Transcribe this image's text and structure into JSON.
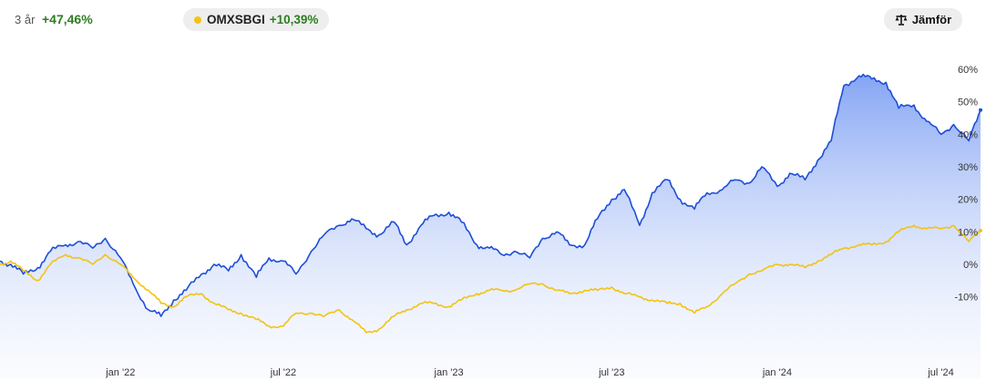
{
  "header": {
    "period_label": "3 år",
    "period_change": "+47,46%",
    "benchmark_name": "OMXSBGI",
    "benchmark_change": "+10,39%",
    "compare_label": "Jämför",
    "compare_icon": "scale-icon"
  },
  "colors": {
    "main_line": "#1d4ed8",
    "benchmark_line": "#f2c311",
    "positive": "#2e7d22"
  },
  "chart_data": {
    "type": "line",
    "title": "",
    "xlabel": "",
    "ylabel": "",
    "y_unit": "%",
    "ylim": [
      -20,
      62
    ],
    "y_ticks": [
      "60%",
      "50%",
      "40%",
      "30%",
      "20%",
      "10%",
      "0%",
      "-10%"
    ],
    "y_tick_values": [
      60,
      50,
      40,
      30,
      20,
      10,
      0,
      -10
    ],
    "x_ticks": [
      "jan '22",
      "jul '22",
      "jan '23",
      "jul '23",
      "jan '24",
      "jul '24"
    ],
    "x_tick_dates": [
      "2022-01-01",
      "2022-07-01",
      "2023-01-01",
      "2023-07-01",
      "2024-01-01",
      "2024-07-01"
    ],
    "x_range": [
      "2021-08-20",
      "2024-08-14"
    ],
    "grid": false,
    "legend": "top-left",
    "series": [
      {
        "name": "",
        "fill": "area-gradient",
        "x": [
          "2021-08-20",
          "2021-09-01",
          "2021-09-15",
          "2021-10-01",
          "2021-10-15",
          "2021-11-01",
          "2021-11-15",
          "2021-12-01",
          "2021-12-15",
          "2022-01-01",
          "2022-01-15",
          "2022-02-01",
          "2022-02-15",
          "2022-03-01",
          "2022-03-15",
          "2022-04-01",
          "2022-04-15",
          "2022-05-01",
          "2022-05-15",
          "2022-06-01",
          "2022-06-15",
          "2022-07-01",
          "2022-07-15",
          "2022-08-01",
          "2022-08-15",
          "2022-09-01",
          "2022-09-15",
          "2022-10-01",
          "2022-10-15",
          "2022-11-01",
          "2022-11-15",
          "2022-12-01",
          "2022-12-15",
          "2023-01-01",
          "2023-01-15",
          "2023-02-01",
          "2023-02-15",
          "2023-03-01",
          "2023-03-15",
          "2023-04-01",
          "2023-04-15",
          "2023-05-01",
          "2023-05-15",
          "2023-06-01",
          "2023-06-15",
          "2023-07-01",
          "2023-07-15",
          "2023-08-01",
          "2023-08-15",
          "2023-09-01",
          "2023-09-15",
          "2023-10-01",
          "2023-10-15",
          "2023-11-01",
          "2023-11-15",
          "2023-12-01",
          "2023-12-15",
          "2024-01-01",
          "2024-01-15",
          "2024-02-01",
          "2024-02-15",
          "2024-03-01",
          "2024-03-15",
          "2024-04-01",
          "2024-04-15",
          "2024-05-01",
          "2024-05-15",
          "2024-06-01",
          "2024-06-15",
          "2024-07-01",
          "2024-07-15",
          "2024-08-01",
          "2024-08-14"
        ],
        "values": [
          1,
          0,
          -3,
          -1,
          4,
          6,
          7,
          5,
          8,
          2,
          -6,
          -14,
          -16,
          -11,
          -8,
          -3,
          0,
          -2,
          3,
          -4,
          2,
          1,
          -3,
          4,
          9,
          12,
          14,
          11,
          9,
          13,
          6,
          12,
          15,
          16,
          13,
          6,
          5,
          3,
          4,
          2,
          8,
          10,
          6,
          6,
          14,
          20,
          23,
          12,
          22,
          26,
          20,
          17,
          22,
          23,
          26,
          25,
          30,
          24,
          28,
          26,
          32,
          38,
          55,
          58,
          57,
          56,
          48,
          49,
          44,
          40,
          43,
          38,
          47.46
        ]
      },
      {
        "name": "OMXSBGI",
        "x": [
          "2021-08-20",
          "2021-09-01",
          "2021-09-15",
          "2021-10-01",
          "2021-10-15",
          "2021-11-01",
          "2021-11-15",
          "2021-12-01",
          "2021-12-15",
          "2022-01-01",
          "2022-01-15",
          "2022-02-01",
          "2022-02-15",
          "2022-03-01",
          "2022-03-15",
          "2022-04-01",
          "2022-04-15",
          "2022-05-01",
          "2022-05-15",
          "2022-06-01",
          "2022-06-15",
          "2022-07-01",
          "2022-07-15",
          "2022-08-01",
          "2022-08-15",
          "2022-09-01",
          "2022-09-15",
          "2022-10-01",
          "2022-10-15",
          "2022-11-01",
          "2022-11-15",
          "2022-12-01",
          "2022-12-15",
          "2023-01-01",
          "2023-01-15",
          "2023-02-01",
          "2023-02-15",
          "2023-03-01",
          "2023-03-15",
          "2023-04-01",
          "2023-04-15",
          "2023-05-01",
          "2023-05-15",
          "2023-06-01",
          "2023-06-15",
          "2023-07-01",
          "2023-07-15",
          "2023-08-01",
          "2023-08-15",
          "2023-09-01",
          "2023-09-15",
          "2023-10-01",
          "2023-10-15",
          "2023-11-01",
          "2023-11-15",
          "2023-12-01",
          "2023-12-15",
          "2024-01-01",
          "2024-01-15",
          "2024-02-01",
          "2024-02-15",
          "2024-03-01",
          "2024-03-15",
          "2024-04-01",
          "2024-04-15",
          "2024-05-01",
          "2024-05-15",
          "2024-06-01",
          "2024-06-15",
          "2024-07-01",
          "2024-07-15",
          "2024-08-01",
          "2024-08-14"
        ],
        "values": [
          0,
          1,
          -2,
          -5,
          0,
          3,
          2,
          0,
          3,
          0,
          -4,
          -8,
          -12,
          -13,
          -10,
          -9,
          -12,
          -14,
          -15,
          -17,
          -19,
          -19,
          -15,
          -15,
          -16,
          -14,
          -17,
          -21,
          -20,
          -16,
          -14,
          -12,
          -12,
          -13,
          -11,
          -9,
          -8,
          -8,
          -8,
          -6,
          -6,
          -8,
          -9,
          -8,
          -8,
          -7,
          -9,
          -10,
          -11,
          -12,
          -12,
          -15,
          -13,
          -9,
          -6,
          -3,
          -2,
          0,
          0,
          -1,
          1,
          3,
          5,
          6,
          6,
          7,
          10,
          12,
          11,
          11,
          12,
          7,
          10.39
        ]
      }
    ]
  }
}
